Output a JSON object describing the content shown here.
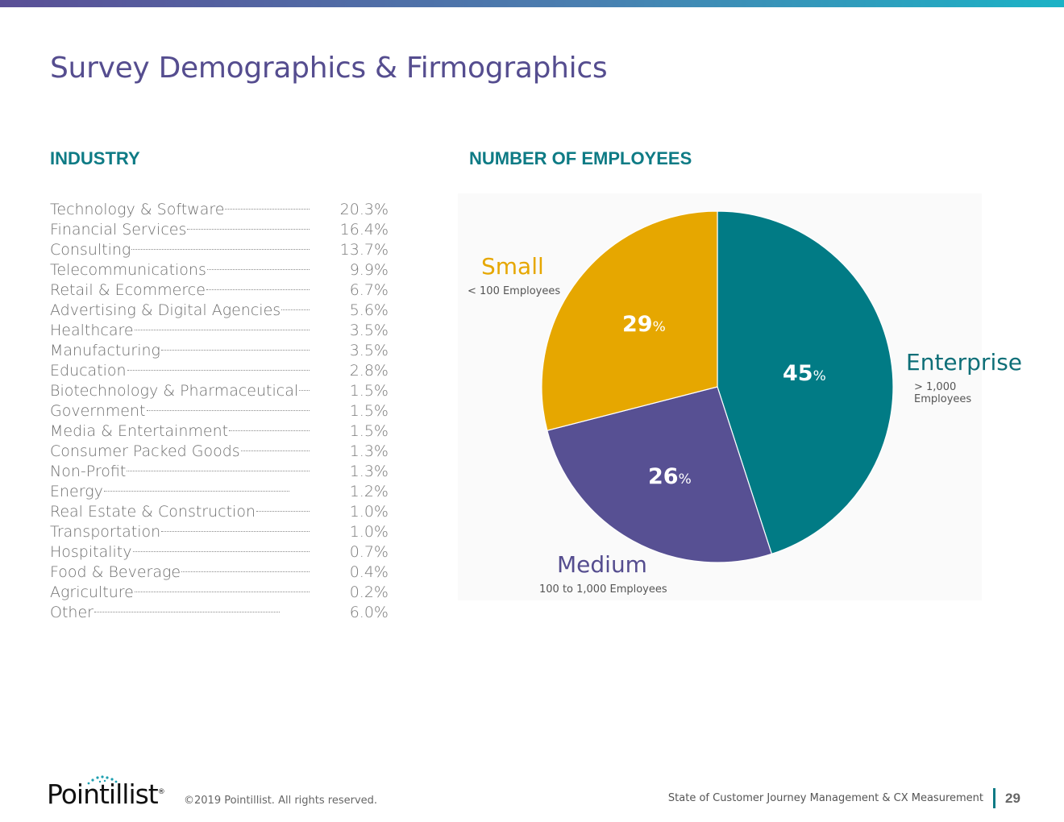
{
  "page_title": "Survey Demographics & Firmographics",
  "industry": {
    "heading": "INDUSTRY",
    "rows": [
      {
        "name": "Technology & Software",
        "value": "20.3%"
      },
      {
        "name": "Financial Services",
        "value": "16.4%"
      },
      {
        "name": "Consulting",
        "value": "13.7%"
      },
      {
        "name": "Telecommunications",
        "value": "9.9%"
      },
      {
        "name": "Retail & Ecommerce",
        "value": "6.7%"
      },
      {
        "name": "Advertising & Digital Agencies",
        "value": "5.6%"
      },
      {
        "name": "Healthcare",
        "value": "3.5%"
      },
      {
        "name": "Manufacturing",
        "value": "3.5%"
      },
      {
        "name": "Education",
        "value": "2.8%"
      },
      {
        "name": "Biotechnology & Pharmaceutical",
        "value": "1.5%"
      },
      {
        "name": "Government",
        "value": "1.5%"
      },
      {
        "name": "Media & Entertainment",
        "value": "1.5%"
      },
      {
        "name": "Consumer Packed Goods",
        "value": "1.3%"
      },
      {
        "name": "Non-Profit",
        "value": "1.3%"
      },
      {
        "name": "Energy",
        "value": "1.2%"
      },
      {
        "name": "Real Estate & Construction",
        "value": "1.0%"
      },
      {
        "name": "Transportation",
        "value": "1.0%"
      },
      {
        "name": "Hospitality",
        "value": "0.7%"
      },
      {
        "name": "Food & Beverage",
        "value": "0.4%"
      },
      {
        "name": "Agriculture",
        "value": "0.2%"
      },
      {
        "name": "Other",
        "value": "6.0%"
      }
    ]
  },
  "employees": {
    "heading": "NUMBER OF EMPLOYEES",
    "enterprise": {
      "title": "Enterprise",
      "sub": "> 1,000 Employees",
      "pct": "45",
      "unit": "%"
    },
    "medium": {
      "title": "Medium",
      "sub": "100 to 1,000 Employees",
      "pct": "26",
      "unit": "%"
    },
    "small": {
      "title": "Small",
      "sub": "< 100 Employees",
      "pct": "29",
      "unit": "%"
    }
  },
  "chart_data": {
    "type": "pie",
    "title": "NUMBER OF EMPLOYEES",
    "slices": [
      {
        "label": "Enterprise",
        "value": 45,
        "color": "#017b85"
      },
      {
        "label": "Medium",
        "value": 26,
        "color": "#575093"
      },
      {
        "label": "Small",
        "value": 29,
        "color": "#e6a700"
      }
    ]
  },
  "footer": {
    "logo_text": "Pointillist",
    "logo_mark": "®",
    "copyright": "©2019 Pointillist. All rights reserved.",
    "report_title": "State of Customer Journey Management & CX Measurement",
    "page_number": "29"
  },
  "colors": {
    "accent": "#0e7b85",
    "title": "#554d8f",
    "enterprise": "#017b85",
    "medium": "#575093",
    "small": "#e6a700"
  }
}
